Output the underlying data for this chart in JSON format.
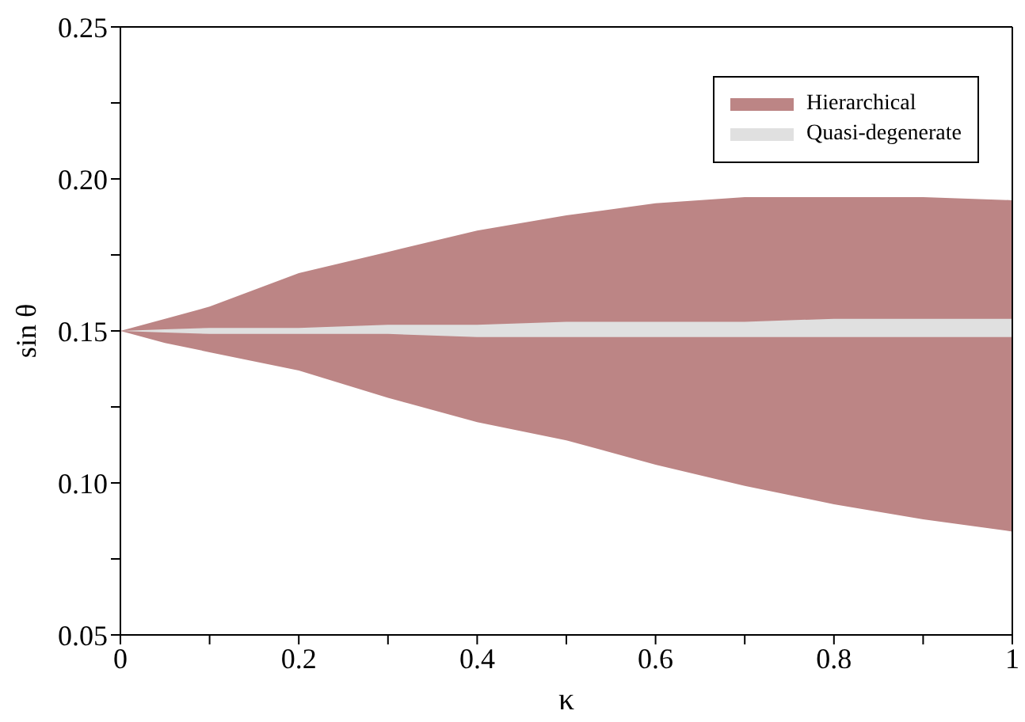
{
  "chart_data": {
    "type": "area",
    "xlabel": "κ",
    "ylabel": "sin θ",
    "x": [
      0,
      0.05,
      0.1,
      0.2,
      0.3,
      0.4,
      0.5,
      0.6,
      0.7,
      0.8,
      0.9,
      1
    ],
    "series": [
      {
        "name": "Hierarchical",
        "color": "#bc8585",
        "values": [
          null,
          null,
          null,
          null,
          null,
          null,
          null,
          null,
          null,
          null,
          null,
          null
        ],
        "upper": [
          0.15,
          0.154,
          0.158,
          0.169,
          0.176,
          0.183,
          0.188,
          0.192,
          0.194,
          0.194,
          0.194,
          0.193
        ],
        "lower": [
          0.15,
          0.146,
          0.143,
          0.137,
          0.128,
          0.12,
          0.114,
          0.106,
          0.099,
          0.093,
          0.088,
          0.084
        ]
      },
      {
        "name": "Quasi-degenerate",
        "color": "#e0e0e0",
        "values": [
          null,
          null,
          null,
          null,
          null,
          null,
          null,
          null,
          null,
          null,
          null,
          null
        ],
        "upper": [
          0.15,
          0.1505,
          0.151,
          0.151,
          0.152,
          0.152,
          0.153,
          0.153,
          0.153,
          0.154,
          0.154,
          0.154
        ],
        "lower": [
          0.15,
          0.1495,
          0.149,
          0.149,
          0.149,
          0.148,
          0.148,
          0.148,
          0.148,
          0.148,
          0.148,
          0.148
        ]
      }
    ],
    "xlim": [
      0,
      1
    ],
    "xticks": [
      0,
      {
        "value": 0.1,
        "label": null
      },
      0.2,
      {
        "value": 0.3,
        "label": null
      },
      0.4,
      {
        "value": 0.5,
        "label": null
      },
      0.6,
      {
        "value": 0.7,
        "label": null
      },
      0.8,
      {
        "value": 0.9,
        "label": null
      },
      1
    ],
    "ylim": [
      0.05,
      0.25
    ],
    "yticks": [
      {
        "value": 0.05,
        "label": "0.05"
      },
      {
        "value": 0.075,
        "label": null
      },
      {
        "value": 0.1,
        "label": "0.10"
      },
      {
        "value": 0.125,
        "label": null
      },
      {
        "value": 0.15,
        "label": "0.15"
      },
      {
        "value": 0.175,
        "label": null
      },
      {
        "value": 0.2,
        "label": "0.20"
      },
      {
        "value": 0.225,
        "label": null
      },
      {
        "value": 0.25,
        "label": "0.25"
      }
    ],
    "grid": false,
    "legend": "top right"
  }
}
